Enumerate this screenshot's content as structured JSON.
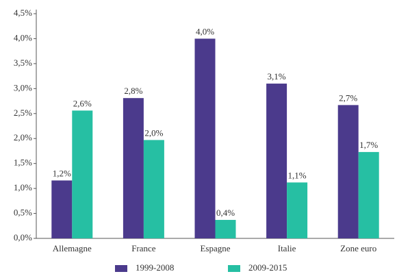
{
  "chart_data": {
    "type": "bar",
    "categories": [
      "Allemagne",
      "France",
      "Espagne",
      "Italie",
      "Zone euro"
    ],
    "series": [
      {
        "name": "1999-2008",
        "color": "#4b3a8c",
        "values": [
          1.16,
          2.81,
          4.0,
          3.1,
          2.67
        ],
        "value_labels": [
          "1,2%",
          "2,8%",
          "4,0%",
          "3,1%",
          "2,7%"
        ]
      },
      {
        "name": "2009-2015",
        "color": "#26bfa3",
        "values": [
          2.56,
          1.97,
          0.37,
          1.12,
          1.73
        ],
        "value_labels": [
          "2,6%",
          "2,0%",
          "0,4%",
          "1,1%",
          "1,7%"
        ]
      }
    ],
    "ylim": [
      0,
      4.5
    ],
    "yticks": [
      {
        "value": 0,
        "label": "0,0%"
      },
      {
        "value": 0.5,
        "label": "0,5%"
      },
      {
        "value": 1,
        "label": "1,0%"
      },
      {
        "value": 1.5,
        "label": "1,5%"
      },
      {
        "value": 2,
        "label": "2,0%"
      },
      {
        "value": 2.5,
        "label": "2,5%"
      },
      {
        "value": 3,
        "label": "3,0%"
      },
      {
        "value": 3.5,
        "label": "3,5%"
      },
      {
        "value": 4,
        "label": "4,0%"
      },
      {
        "value": 4.5,
        "label": "4,5%"
      }
    ],
    "grid": false,
    "legend": "bottom"
  }
}
